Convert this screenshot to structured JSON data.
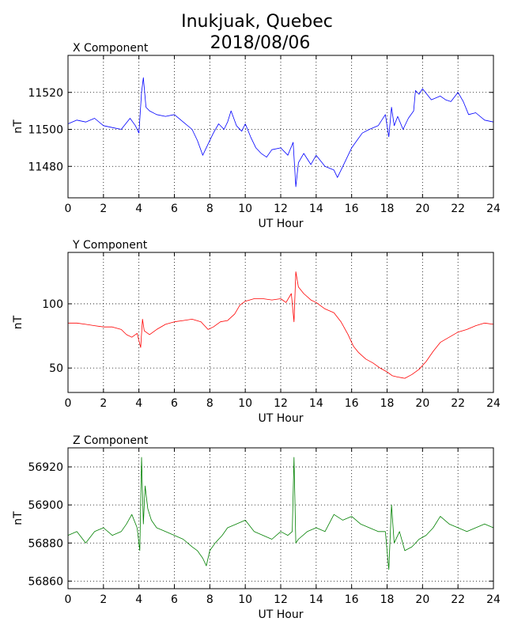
{
  "figure": {
    "title_line1": "Inukjuak, Quebec",
    "title_line2": "2018/08/06"
  },
  "chart_data": [
    {
      "type": "line",
      "title": "X Component",
      "xlabel": "UT Hour",
      "ylabel": "nT",
      "xlim": [
        0,
        24
      ],
      "ylim": [
        11463,
        11540
      ],
      "xticks": [
        0,
        2,
        4,
        6,
        8,
        10,
        12,
        14,
        16,
        18,
        20,
        22,
        24
      ],
      "yticks": [
        11480,
        11500,
        11520
      ],
      "grid": true,
      "color": "#0000ff",
      "series": [
        {
          "x": [
            0,
            0.5,
            1,
            1.5,
            2,
            2.5,
            3,
            3.5,
            3.8,
            4,
            4.15,
            4.25,
            4.4,
            4.6,
            5,
            5.5,
            6,
            6.5,
            7,
            7.3,
            7.6,
            7.9,
            8.2,
            8.5,
            8.8,
            9,
            9.2,
            9.5,
            9.8,
            10,
            10.3,
            10.6,
            10.9,
            11.2,
            11.5,
            12,
            12.4,
            12.7,
            12.85,
            13,
            13.3,
            13.7,
            14,
            14.5,
            15,
            15.2,
            15.5,
            16,
            16.3,
            16.6,
            17,
            17.5,
            17.9,
            18.1,
            18.25,
            18.4,
            18.6,
            18.9,
            19.2,
            19.5,
            19.6,
            19.8,
            20,
            20.5,
            21,
            21.3,
            21.6,
            22,
            22.3,
            22.6,
            23,
            23.5,
            24
          ],
          "y": [
            11503,
            11505,
            11504,
            11506,
            11502,
            11501,
            11500,
            11506,
            11502,
            11498,
            11520,
            11528,
            11512,
            11510,
            11508,
            11507,
            11508,
            11504,
            11500,
            11494,
            11486,
            11492,
            11498,
            11503,
            11500,
            11504,
            11510,
            11502,
            11499,
            11503,
            11496,
            11490,
            11487,
            11485,
            11489,
            11490,
            11486,
            11493,
            11469,
            11482,
            11487,
            11481,
            11486,
            11480,
            11478,
            11474,
            11480,
            11490,
            11494,
            11498,
            11500,
            11502,
            11508,
            11496,
            11512,
            11502,
            11507,
            11500,
            11506,
            11510,
            11521,
            11519,
            11522,
            11516,
            11518,
            11516,
            11515,
            11520,
            11515,
            11508,
            11509,
            11505,
            11504
          ]
        }
      ]
    },
    {
      "type": "line",
      "title": "Y Component",
      "xlabel": "UT Hour",
      "ylabel": "nT",
      "xlim": [
        0,
        24
      ],
      "ylim": [
        31,
        140
      ],
      "xticks": [
        0,
        2,
        4,
        6,
        8,
        10,
        12,
        14,
        16,
        18,
        20,
        22,
        24
      ],
      "yticks": [
        50,
        100
      ],
      "grid": true,
      "color": "#ff0000",
      "series": [
        {
          "x": [
            0,
            0.5,
            1,
            1.5,
            2,
            2.5,
            3,
            3.3,
            3.6,
            3.9,
            4.1,
            4.2,
            4.3,
            4.6,
            5,
            5.5,
            6,
            6.5,
            7,
            7.5,
            7.9,
            8.2,
            8.6,
            9,
            9.4,
            9.7,
            10,
            10.5,
            11,
            11.5,
            12,
            12.3,
            12.6,
            12.75,
            12.85,
            13,
            13.3,
            13.7,
            14,
            14.5,
            15,
            15.4,
            15.8,
            16.1,
            16.4,
            16.8,
            17.2,
            17.6,
            18,
            18.3,
            18.6,
            19,
            19.4,
            19.8,
            20.2,
            20.6,
            21,
            21.5,
            22,
            22.5,
            23,
            23.5,
            24
          ],
          "y": [
            85,
            85,
            84,
            83,
            82,
            82,
            80,
            76,
            74,
            77,
            66,
            88,
            79,
            76,
            80,
            84,
            86,
            87,
            88,
            86,
            80,
            82,
            86,
            87,
            92,
            99,
            102,
            104,
            104,
            103,
            104,
            101,
            108,
            86,
            125,
            113,
            108,
            103,
            101,
            96,
            93,
            86,
            76,
            67,
            62,
            57,
            54,
            50,
            47,
            44,
            43,
            42,
            45,
            49,
            55,
            63,
            70,
            74,
            78,
            80,
            83,
            85,
            84
          ]
        }
      ]
    },
    {
      "type": "line",
      "title": "Z Component",
      "xlabel": "UT Hour",
      "ylabel": "nT",
      "xlim": [
        0,
        24
      ],
      "ylim": [
        56856,
        56930
      ],
      "xticks": [
        0,
        2,
        4,
        6,
        8,
        10,
        12,
        14,
        16,
        18,
        20,
        22,
        24
      ],
      "yticks": [
        56860,
        56880,
        56900,
        56920
      ],
      "grid": true,
      "color": "#008000",
      "series": [
        {
          "x": [
            0,
            0.5,
            1,
            1.5,
            2,
            2.5,
            3,
            3.3,
            3.6,
            3.9,
            4.05,
            4.15,
            4.25,
            4.35,
            4.5,
            4.7,
            5,
            5.5,
            6,
            6.5,
            7,
            7.3,
            7.6,
            7.8,
            8,
            8.3,
            8.7,
            9,
            9.5,
            10,
            10.5,
            11,
            11.5,
            12,
            12.4,
            12.65,
            12.75,
            12.85,
            13,
            13.5,
            14,
            14.5,
            15,
            15.5,
            16,
            16.5,
            17,
            17.5,
            17.9,
            18.1,
            18.25,
            18.4,
            18.7,
            19,
            19.4,
            19.8,
            20.2,
            20.6,
            21,
            21.5,
            22,
            22.5,
            23,
            23.5,
            24
          ],
          "y": [
            56884,
            56886,
            56880,
            56886,
            56888,
            56884,
            56886,
            56890,
            56895,
            56888,
            56876,
            56925,
            56890,
            56910,
            56898,
            56892,
            56888,
            56886,
            56884,
            56882,
            56878,
            56876,
            56872,
            56868,
            56876,
            56880,
            56884,
            56888,
            56890,
            56892,
            56886,
            56884,
            56882,
            56886,
            56884,
            56886,
            56925,
            56880,
            56882,
            56886,
            56888,
            56886,
            56895,
            56892,
            56894,
            56890,
            56888,
            56886,
            56886,
            56866,
            56900,
            56880,
            56886,
            56876,
            56878,
            56882,
            56884,
            56888,
            56894,
            56890,
            56888,
            56886,
            56888,
            56890,
            56888
          ]
        }
      ]
    }
  ]
}
